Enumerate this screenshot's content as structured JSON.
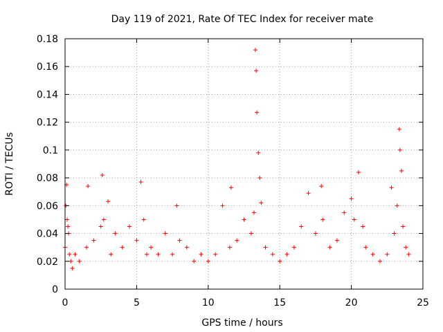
{
  "chart_data": {
    "type": "scatter",
    "title": "Day 119 of 2021, Rate Of TEC Index for receiver mate",
    "xlabel": "GPS time / hours",
    "ylabel": "ROTI / TECUs",
    "xlim": [
      0,
      25
    ],
    "ylim": [
      0,
      0.18
    ],
    "xticks": [
      0,
      5,
      10,
      15,
      20,
      25
    ],
    "xtick_labels": [
      "0",
      "5",
      "10",
      "15",
      "20",
      "25"
    ],
    "yticks": [
      0,
      0.02,
      0.04,
      0.06,
      0.08,
      0.1,
      0.12,
      0.14,
      0.16,
      0.18
    ],
    "ytick_labels": [
      "0",
      "0.02",
      "0.04",
      "0.06",
      "0.08",
      "0.1",
      "0.12",
      "0.14",
      "0.16",
      "0.18"
    ],
    "grid": true,
    "marker": "+",
    "color": "#ff0000",
    "series": [
      {
        "name": "ROTI",
        "x": [
          0.0,
          0.05,
          0.1,
          0.15,
          0.2,
          0.25,
          0.3,
          0.4,
          0.5,
          0.7,
          1.0,
          1.5,
          1.6,
          2.0,
          2.5,
          2.6,
          2.7,
          3.0,
          3.2,
          3.5,
          4.0,
          4.5,
          5.0,
          5.3,
          5.5,
          5.7,
          6.0,
          6.5,
          7.0,
          7.5,
          7.8,
          8.0,
          8.5,
          9.0,
          9.5,
          10.0,
          10.5,
          11.0,
          11.5,
          11.6,
          12.0,
          12.5,
          13.0,
          13.2,
          13.3,
          13.35,
          13.4,
          13.5,
          13.6,
          13.7,
          14.0,
          14.5,
          15.0,
          15.5,
          16.0,
          16.5,
          17.0,
          17.5,
          17.9,
          18.0,
          18.5,
          19.0,
          19.5,
          20.0,
          20.2,
          20.5,
          20.8,
          21.0,
          21.5,
          22.0,
          22.5,
          22.8,
          23.0,
          23.2,
          23.35,
          23.4,
          23.5,
          23.6,
          23.8,
          24.0
        ],
        "y": [
          0.03,
          0.06,
          0.075,
          0.05,
          0.045,
          0.04,
          0.025,
          0.02,
          0.015,
          0.025,
          0.02,
          0.03,
          0.074,
          0.035,
          0.045,
          0.082,
          0.05,
          0.063,
          0.025,
          0.04,
          0.03,
          0.045,
          0.035,
          0.077,
          0.05,
          0.025,
          0.03,
          0.025,
          0.04,
          0.025,
          0.06,
          0.035,
          0.03,
          0.02,
          0.025,
          0.02,
          0.025,
          0.06,
          0.03,
          0.073,
          0.035,
          0.05,
          0.04,
          0.055,
          0.172,
          0.157,
          0.127,
          0.098,
          0.08,
          0.062,
          0.03,
          0.025,
          0.02,
          0.025,
          0.03,
          0.045,
          0.069,
          0.04,
          0.074,
          0.05,
          0.03,
          0.035,
          0.055,
          0.065,
          0.05,
          0.084,
          0.045,
          0.03,
          0.025,
          0.02,
          0.025,
          0.073,
          0.04,
          0.06,
          0.115,
          0.1,
          0.085,
          0.045,
          0.03,
          0.025
        ]
      }
    ]
  }
}
